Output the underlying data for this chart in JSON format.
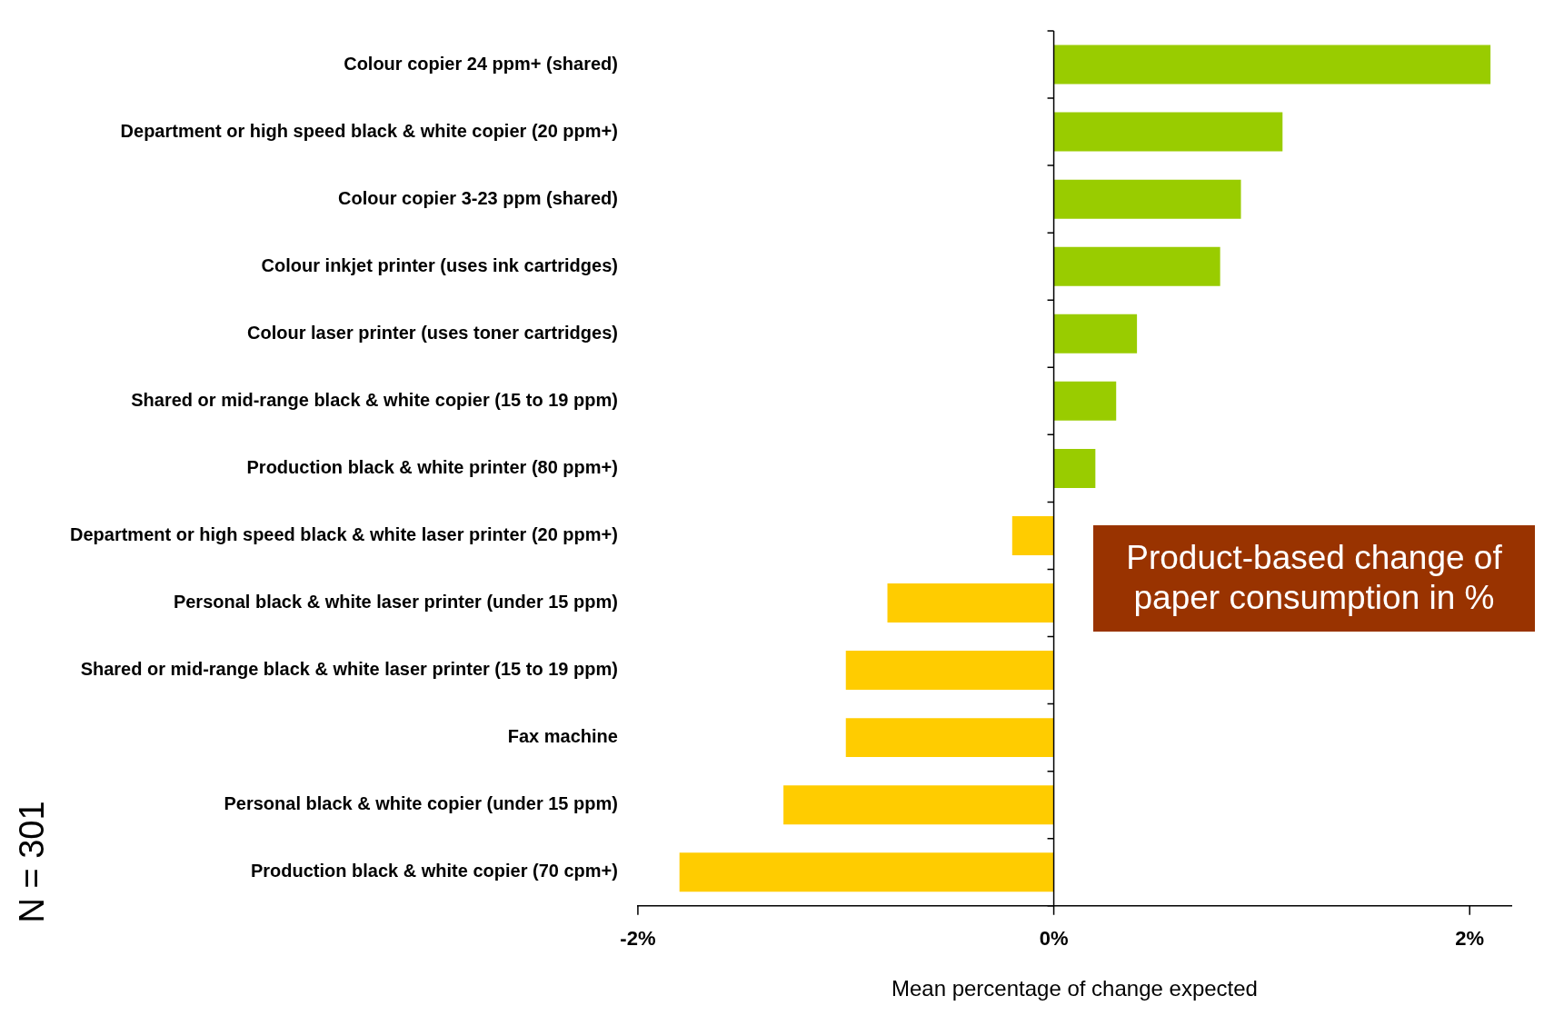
{
  "chart_data": {
    "type": "bar",
    "orientation": "horizontal",
    "xlabel": "Mean percentage of change expected",
    "categories": [
      "Colour copier 24 ppm+ (shared)",
      "Department or high speed black & white copier (20 ppm+)",
      "Colour copier 3-23 ppm (shared)",
      "Colour inkjet printer (uses ink cartridges)",
      "Colour laser printer (uses toner cartridges)",
      "Shared or mid-range black & white copier (15 to 19 ppm)",
      "Production black & white printer (80 ppm+)",
      "Department or high speed black & white laser printer (20 ppm+)",
      "Personal black & white laser printer (under 15 ppm)",
      "Shared or mid-range black & white laser printer (15 to 19 ppm)",
      "Fax machine",
      "Personal black & white copier (under 15 ppm)",
      "Production black & white copier (70 cpm+)"
    ],
    "values": [
      2.1,
      1.1,
      0.9,
      0.8,
      0.4,
      0.3,
      0.2,
      -0.2,
      -0.8,
      -1.0,
      -1.0,
      -1.3,
      -1.8
    ],
    "colors": [
      "#99cc00",
      "#99cc00",
      "#99cc00",
      "#99cc00",
      "#99cc00",
      "#99cc00",
      "#99cc00",
      "#ffcc00",
      "#ffcc00",
      "#ffcc00",
      "#ffcc00",
      "#ffcc00",
      "#ffcc00"
    ],
    "xlim": [
      -2,
      2.2
    ],
    "xticks": [
      {
        "value": -2,
        "label": "-2%"
      },
      {
        "value": 0,
        "label": "0%"
      },
      {
        "value": 2,
        "label": "2%"
      }
    ],
    "legend": false,
    "annotations": [
      "Product-based change of paper consumption in %",
      "N = 301"
    ]
  }
}
